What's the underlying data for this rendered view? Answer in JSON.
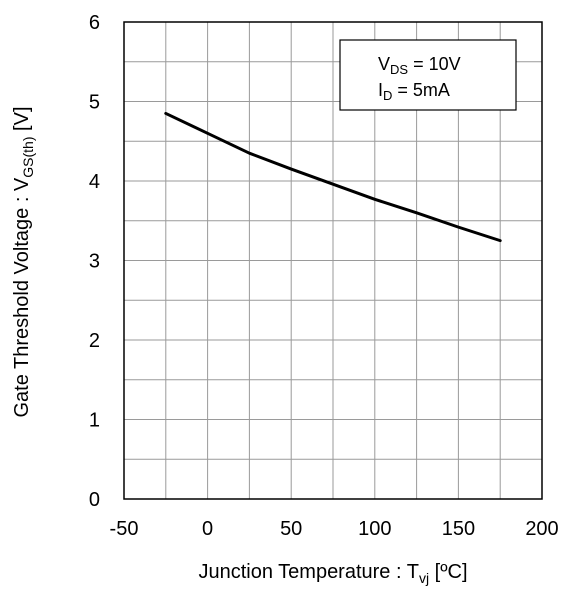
{
  "chart_data": {
    "type": "line",
    "xlabel_main": "Junction Temperature : T",
    "xlabel_sub": "vj",
    "xlabel_unit": " [ºC]",
    "ylabel_main": "Gate Threshold Voltage : V",
    "ylabel_sub": "GS(th)",
    "ylabel_unit": " [V]",
    "xlim": [
      -50,
      200
    ],
    "ylim": [
      0,
      6
    ],
    "x_ticks": [
      "-50",
      "0",
      "50",
      "100",
      "150",
      "200"
    ],
    "y_ticks": [
      "0",
      "1",
      "2",
      "3",
      "4",
      "5",
      "6"
    ],
    "grid": true,
    "series": [
      {
        "x": [
          -25,
          0,
          25,
          50,
          75,
          100,
          125,
          150,
          175
        ],
        "values": [
          4.85,
          4.6,
          4.35,
          4.15,
          3.96,
          3.77,
          3.6,
          3.42,
          3.25
        ]
      }
    ],
    "annotation": {
      "line1_main": "V",
      "line1_sub": "DS",
      "line1_rest": " = 10V",
      "line2_main": "I",
      "line2_sub": "D",
      "line2_rest": " = 5mA"
    }
  }
}
